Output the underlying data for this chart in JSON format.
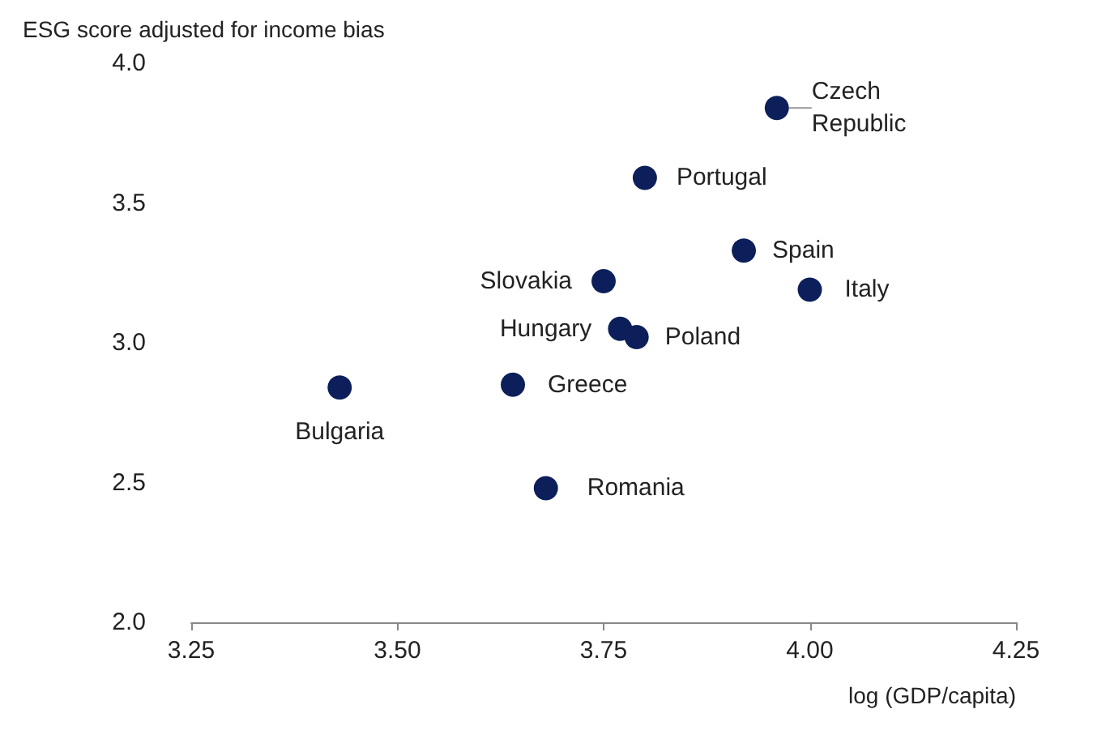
{
  "chart_data": {
    "type": "scatter",
    "ylabel": "ESG score adjusted for income bias",
    "xlabel": "log (GDP/capita)",
    "series": [
      {
        "color": "#0c1f5a",
        "x": [
          3.96,
          3.8,
          3.92,
          3.75,
          4.0,
          3.77,
          3.79,
          3.43,
          3.64,
          3.68
        ],
        "values": [
          3.84,
          3.59,
          3.33,
          3.22,
          3.19,
          3.05,
          3.02,
          2.84,
          2.85,
          2.48
        ],
        "value_labels": [
          "Czech\nRepublic",
          "Portugal",
          "Spain",
          "Slovakia",
          "Italy",
          "Hungary",
          "Poland",
          "Bulgaria",
          "Greece",
          "Romania"
        ]
      }
    ],
    "xlim": [
      3.25,
      4.25
    ],
    "xticks": [
      {
        "value": 3.25,
        "label": "3.25"
      },
      {
        "value": 3.5,
        "label": "3.50"
      },
      {
        "value": 3.75,
        "label": "3.75"
      },
      {
        "value": 4,
        "label": "4.00"
      },
      {
        "value": 4.25,
        "label": "4.25"
      }
    ],
    "ylim": [
      2,
      4
    ],
    "yticks": [
      {
        "value": 2,
        "label": "2.0"
      },
      {
        "value": 2.5,
        "label": "2.5"
      },
      {
        "value": 3,
        "label": "3.0"
      },
      {
        "value": 3.5,
        "label": "3.5"
      },
      {
        "value": 4,
        "label": "4.0"
      }
    ],
    "grid": false,
    "marker": "circle"
  }
}
